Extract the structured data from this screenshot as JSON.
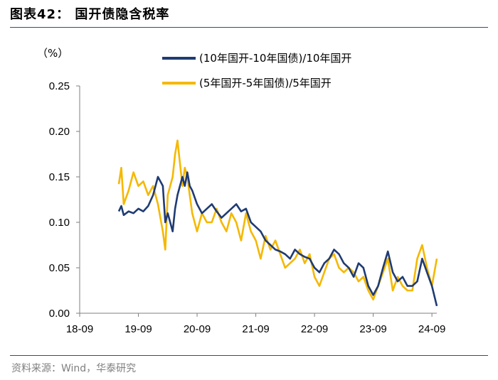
{
  "figure": {
    "title": "图表42：  国开债隐含税率",
    "source": "资料来源：Wind，华泰研究"
  },
  "chart_data": {
    "type": "line",
    "unit_label": "（%）",
    "ylim": [
      0,
      0.25
    ],
    "yticks": [
      0.0,
      0.05,
      0.1,
      0.15,
      0.2,
      0.25
    ],
    "ytick_labels": [
      "0.00",
      "0.05",
      "0.10",
      "0.15",
      "0.20",
      "0.25"
    ],
    "xlim": [
      0,
      73
    ],
    "xticks": [
      0,
      12,
      24,
      36,
      48,
      60,
      72
    ],
    "xtick_labels": [
      "18-09",
      "19-09",
      "20-09",
      "21-09",
      "22-09",
      "23-09",
      "24-09"
    ],
    "grid": false,
    "legend_position": "top-right",
    "colors": {
      "series1": "#1f3b73",
      "series2": "#f5b800",
      "axis": "#7f7f7f",
      "rule": "#2b4c7e"
    },
    "series": [
      {
        "name": "(10年国开-10年国债)/10年国开",
        "x": [
          8,
          8.5,
          9,
          10,
          11,
          12,
          13,
          14,
          15,
          16,
          17,
          17.5,
          18,
          19,
          19.5,
          20,
          21,
          21.5,
          22,
          22.5,
          23,
          24,
          25,
          26,
          27,
          28,
          29,
          30,
          31,
          32,
          33,
          34,
          35,
          36,
          37,
          38,
          39,
          40,
          41,
          42,
          43,
          44,
          45,
          46,
          47,
          48,
          49,
          50,
          51,
          52,
          53,
          54,
          55,
          56,
          57,
          58,
          59,
          60,
          61,
          62,
          63,
          64,
          65,
          66,
          67,
          68,
          69,
          70,
          71,
          72,
          73
        ],
        "y": [
          0.112,
          0.118,
          0.108,
          0.112,
          0.11,
          0.115,
          0.112,
          0.118,
          0.13,
          0.15,
          0.14,
          0.1,
          0.11,
          0.09,
          0.115,
          0.13,
          0.15,
          0.14,
          0.155,
          0.14,
          0.135,
          0.12,
          0.11,
          0.115,
          0.12,
          0.112,
          0.105,
          0.11,
          0.115,
          0.12,
          0.112,
          0.115,
          0.1,
          0.095,
          0.09,
          0.08,
          0.075,
          0.07,
          0.068,
          0.065,
          0.06,
          0.07,
          0.065,
          0.062,
          0.06,
          0.05,
          0.045,
          0.055,
          0.06,
          0.07,
          0.065,
          0.055,
          0.05,
          0.04,
          0.055,
          0.05,
          0.03,
          0.02,
          0.03,
          0.05,
          0.068,
          0.045,
          0.035,
          0.04,
          0.03,
          0.03,
          0.035,
          0.06,
          0.045,
          0.03,
          0.008
        ]
      },
      {
        "name": "(5年国开-5年国债)/5年国开",
        "x": [
          8,
          8.5,
          9,
          10,
          11,
          12,
          13,
          14,
          15,
          16,
          17,
          17.5,
          18,
          19,
          19.5,
          20,
          21,
          21.5,
          22,
          22.5,
          23,
          24,
          25,
          26,
          27,
          28,
          29,
          30,
          31,
          32,
          33,
          34,
          35,
          36,
          37,
          38,
          39,
          40,
          41,
          42,
          43,
          44,
          45,
          46,
          47,
          48,
          49,
          50,
          51,
          52,
          53,
          54,
          55,
          56,
          57,
          58,
          59,
          60,
          61,
          62,
          63,
          64,
          65,
          66,
          67,
          68,
          69,
          70,
          71,
          72,
          73
        ],
        "y": [
          0.142,
          0.16,
          0.12,
          0.135,
          0.155,
          0.14,
          0.145,
          0.13,
          0.14,
          0.12,
          0.09,
          0.07,
          0.13,
          0.15,
          0.175,
          0.19,
          0.14,
          0.16,
          0.15,
          0.13,
          0.11,
          0.09,
          0.11,
          0.1,
          0.1,
          0.115,
          0.1,
          0.09,
          0.11,
          0.1,
          0.08,
          0.11,
          0.09,
          0.08,
          0.06,
          0.085,
          0.07,
          0.08,
          0.065,
          0.05,
          0.055,
          0.06,
          0.07,
          0.055,
          0.065,
          0.04,
          0.03,
          0.045,
          0.06,
          0.065,
          0.05,
          0.045,
          0.05,
          0.045,
          0.035,
          0.04,
          0.025,
          0.015,
          0.03,
          0.045,
          0.06,
          0.025,
          0.04,
          0.03,
          0.025,
          0.025,
          0.06,
          0.075,
          0.05,
          0.03,
          0.06
        ]
      }
    ]
  }
}
